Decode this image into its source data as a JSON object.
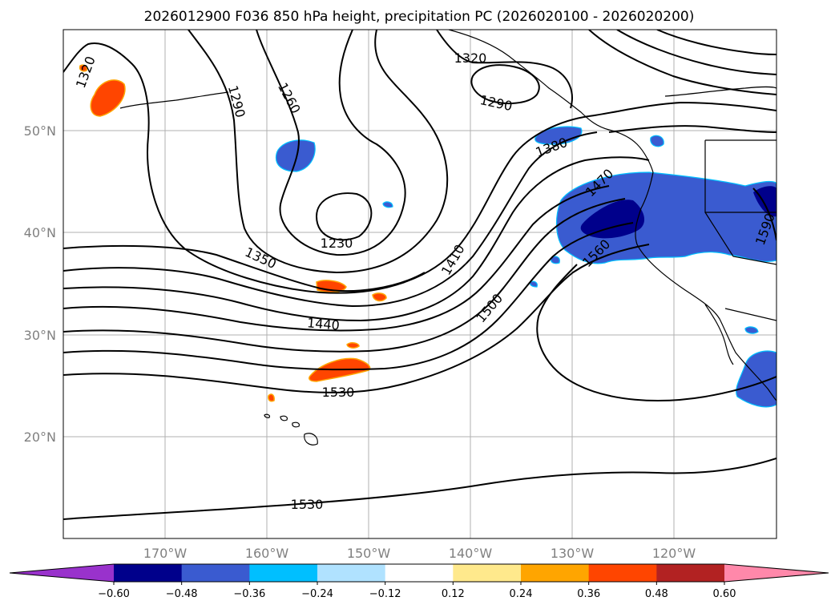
{
  "title": "2026012900 F036 850 hPa height, precipitation PC (2026020100 - 2026020200)",
  "map": {
    "lat_labels": [
      "50°N",
      "40°N",
      "30°N",
      "20°N"
    ],
    "lon_labels": [
      "170°W",
      "160°W",
      "150°W",
      "140°W",
      "130°W",
      "120°W"
    ],
    "contour_labels": [
      "1320",
      "1290",
      "1260",
      "1230",
      "1350",
      "1440",
      "1530",
      "1530",
      "1320",
      "1290",
      "1380",
      "1470",
      "1410",
      "1500",
      "1560",
      "1590"
    ]
  },
  "colorbar": {
    "tick_labels": [
      "−0.60",
      "−0.48",
      "−0.36",
      "−0.24",
      "−0.12",
      "0.12",
      "0.24",
      "0.36",
      "0.48",
      "0.60"
    ],
    "colors": [
      "#9932cc",
      "#00008b",
      "#3a5bd0",
      "#00bfff",
      "#b0e2ff",
      "#ffffff",
      "#ffe98c",
      "#ffa500",
      "#ff4500",
      "#b22222",
      "#ff88aa"
    ]
  }
}
